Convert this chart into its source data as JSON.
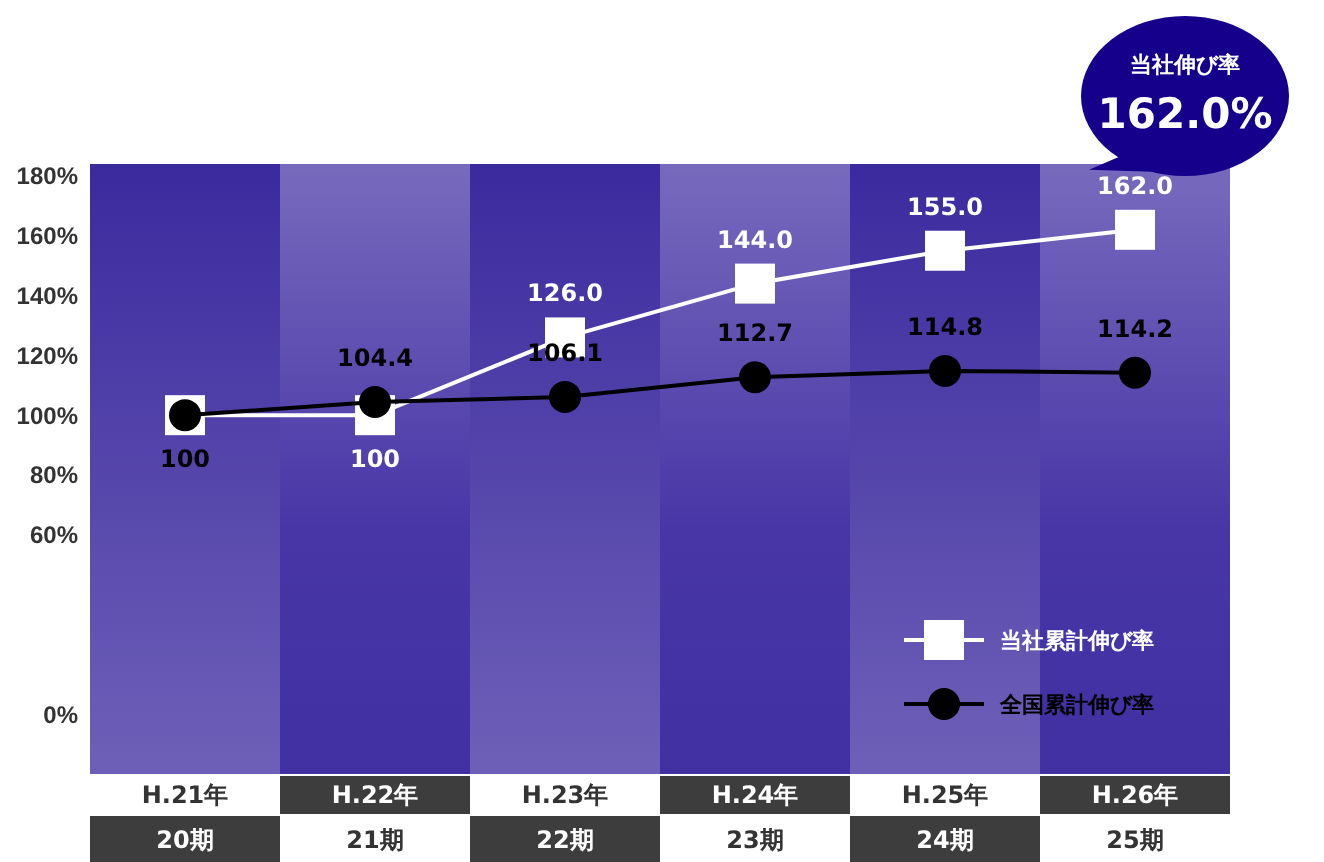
{
  "chart_data": {
    "type": "line",
    "categories": [
      "H.21年",
      "H.22年",
      "H.23年",
      "H.24年",
      "H.25年",
      "H.26年"
    ],
    "series": [
      {
        "name": "当社累計伸び率",
        "color": "#ffffff",
        "marker": "square",
        "values": [
          100,
          100,
          126.0,
          144.0,
          155.0,
          162.0
        ],
        "value_labels": [
          null,
          "100",
          "126.0",
          "144.0",
          "155.0",
          "162.0"
        ]
      },
      {
        "name": "全国累計伸び率",
        "color": "#000000",
        "marker": "circle",
        "values": [
          100,
          104.4,
          106.1,
          112.7,
          114.8,
          114.2
        ],
        "value_labels": [
          "100",
          "104.4",
          "106.1",
          "112.7",
          "114.8",
          "114.2"
        ]
      }
    ],
    "ylim": [
      -20,
      184
    ],
    "yticks": [
      {
        "value": 0,
        "label": "0%"
      },
      {
        "value": 60,
        "label": "60%"
      },
      {
        "value": 80,
        "label": "80%"
      },
      {
        "value": 100,
        "label": "100%"
      },
      {
        "value": 120,
        "label": "120%"
      },
      {
        "value": 140,
        "label": "140%"
      },
      {
        "value": 160,
        "label": "160%"
      },
      {
        "value": 180,
        "label": "180%"
      }
    ],
    "legend": "bottom right",
    "annotations": [
      {
        "text": "当社伸び率\n162.0%",
        "x": "H.26年",
        "y": 162
      },
      "20期",
      "21期",
      "22期",
      "23期",
      "24期",
      "25期"
    ]
  }
}
